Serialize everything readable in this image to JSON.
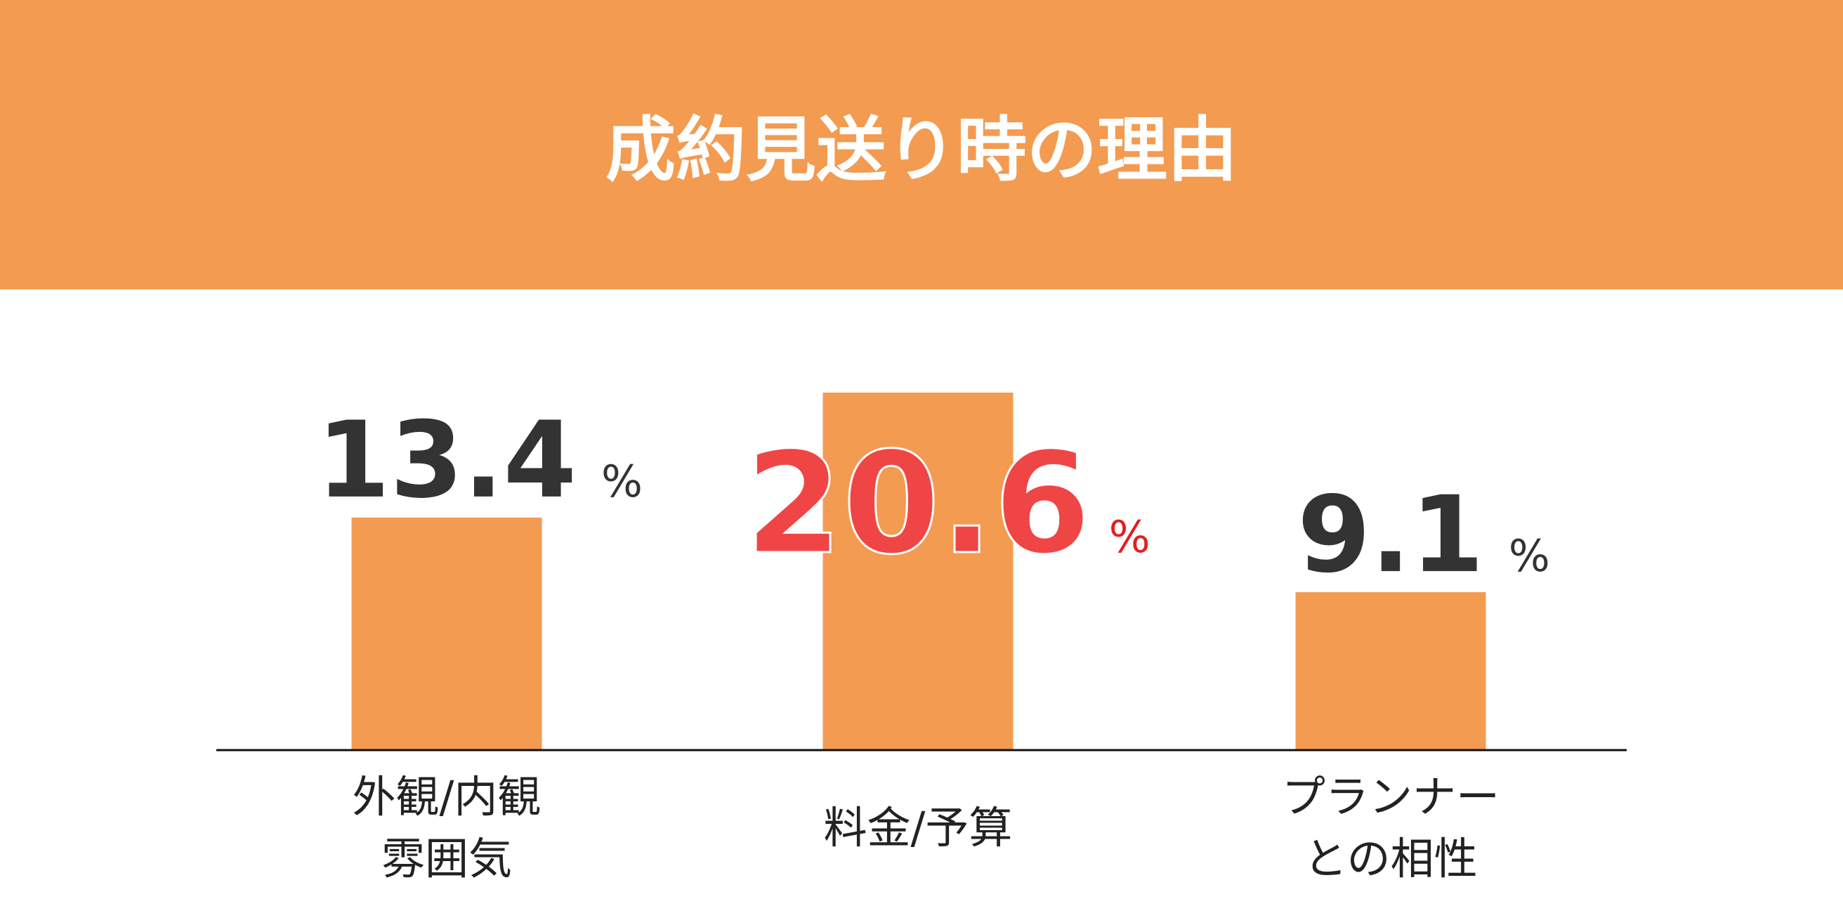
{
  "chart_data": {
    "type": "bar",
    "title": "成約見送り時の理由",
    "categories": [
      [
        "外観/内観",
        "雰囲気"
      ],
      [
        "料金/予算"
      ],
      [
        "プランナー",
        "との相性"
      ]
    ],
    "values": [
      13.4,
      20.6,
      9.1
    ],
    "unit": "%",
    "color": "#F39B50",
    "label_colors": [
      "#333333",
      "#F04545",
      "#333333"
    ],
    "ylim": [
      0,
      20.6
    ]
  }
}
